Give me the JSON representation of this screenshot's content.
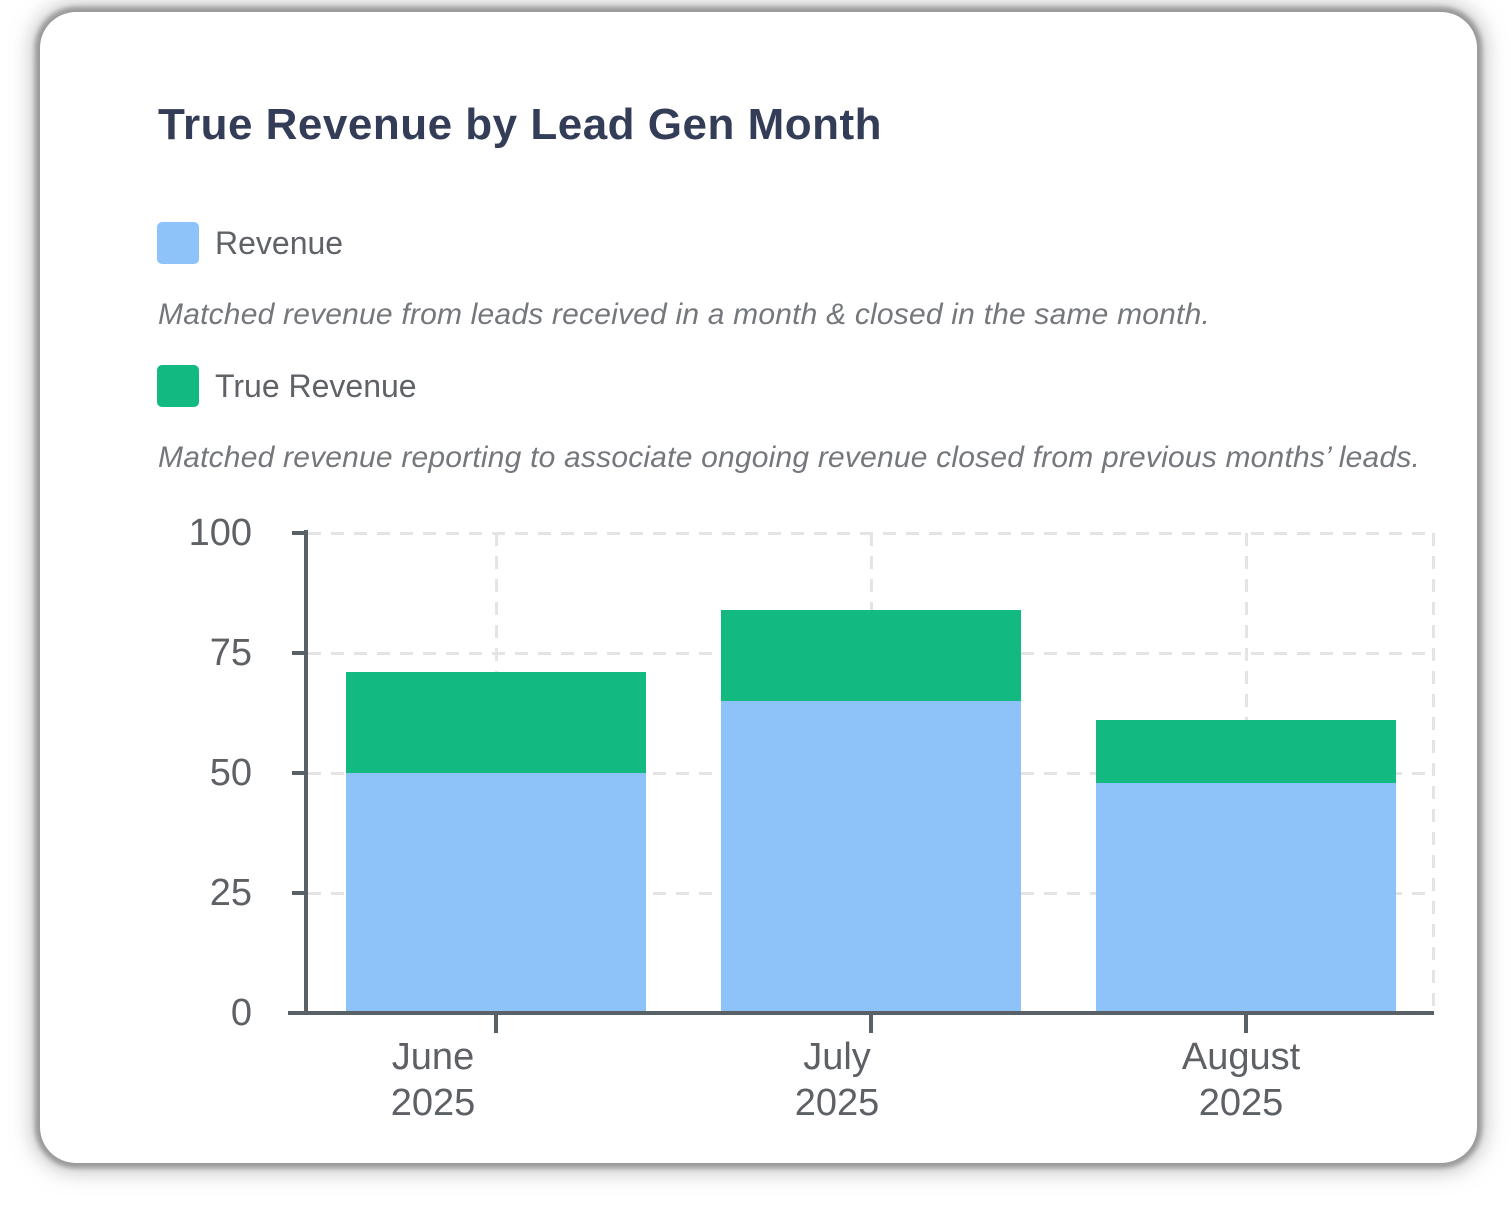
{
  "card": {
    "title": "True Revenue by Lead Gen Month"
  },
  "legend": [
    {
      "label": "Revenue",
      "color": "#8dc3f9",
      "description": "Matched revenue from leads received in a month & closed in the same month."
    },
    {
      "label": "True Revenue",
      "color": "#12b981",
      "description": "Matched revenue reporting to associate ongoing revenue closed from previous months’ leads."
    }
  ],
  "chart_data": {
    "type": "bar",
    "stacked": true,
    "title": "True Revenue by Lead Gen Month",
    "categories": [
      "June 2025",
      "July 2025",
      "August 2025"
    ],
    "category_lines": [
      [
        "June",
        "2025"
      ],
      [
        "July",
        "2025"
      ],
      [
        "August",
        "2025"
      ]
    ],
    "series": [
      {
        "name": "Revenue",
        "color": "#8dc3f9",
        "values": [
          50,
          65,
          48
        ]
      },
      {
        "name": "True Revenue",
        "color": "#12b981",
        "values": [
          21,
          19,
          13
        ]
      }
    ],
    "totals": [
      71,
      84,
      61
    ],
    "xlabel": "",
    "ylabel": "",
    "ylim": [
      0,
      100
    ],
    "yticks": [
      0,
      25,
      50,
      75,
      100
    ],
    "grid": "dashed horizontal at yticks, dashed vertical at category centers and right edge",
    "legend_position": "top-left above chart, with italic descriptions",
    "colors": {
      "axis": "#596066",
      "grid": "#e4e4e4",
      "tick_label": "#5d6166",
      "title": "#343d57"
    }
  }
}
